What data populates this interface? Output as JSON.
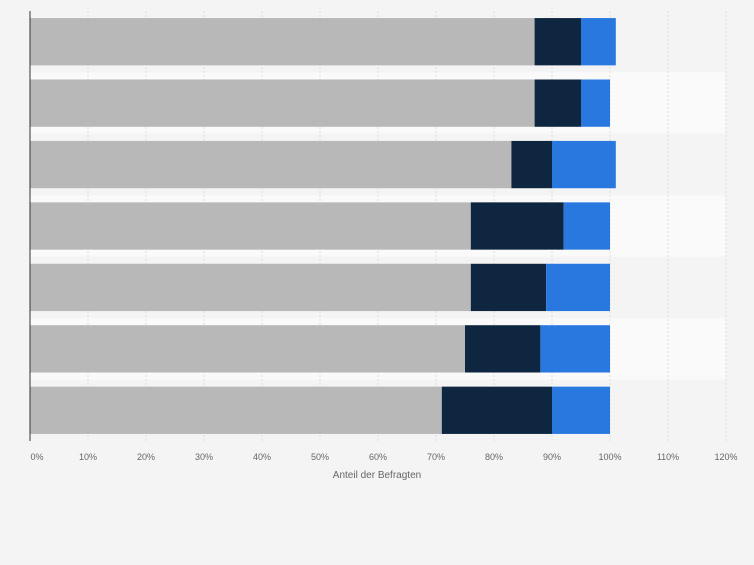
{
  "chart_data": {
    "type": "bar",
    "orientation": "horizontal",
    "stacked": true,
    "categories": [
      "",
      "",
      "",
      "",
      "",
      "",
      ""
    ],
    "series": [
      {
        "color": "#b8b8b8",
        "values": [
          87,
          87,
          83,
          76,
          76,
          75,
          71
        ]
      },
      {
        "color": "#0f2640",
        "values": [
          8,
          8,
          7,
          16,
          13,
          13,
          19
        ]
      },
      {
        "color": "#2878e0",
        "values": [
          6,
          5,
          11,
          8,
          11,
          12,
          10
        ]
      }
    ],
    "xlabel": "Anteil der Befragten",
    "ylabel": "",
    "xlim": [
      0,
      120
    ],
    "xticks": [
      0,
      10,
      20,
      30,
      40,
      50,
      60,
      70,
      80,
      90,
      100,
      110,
      120
    ],
    "xtick_labels": [
      "0%",
      "10%",
      "20%",
      "30%",
      "40%",
      "50%",
      "60%",
      "70%",
      "80%",
      "90%",
      "100%",
      "110%",
      "120%"
    ],
    "grid": true,
    "legend": "none"
  }
}
